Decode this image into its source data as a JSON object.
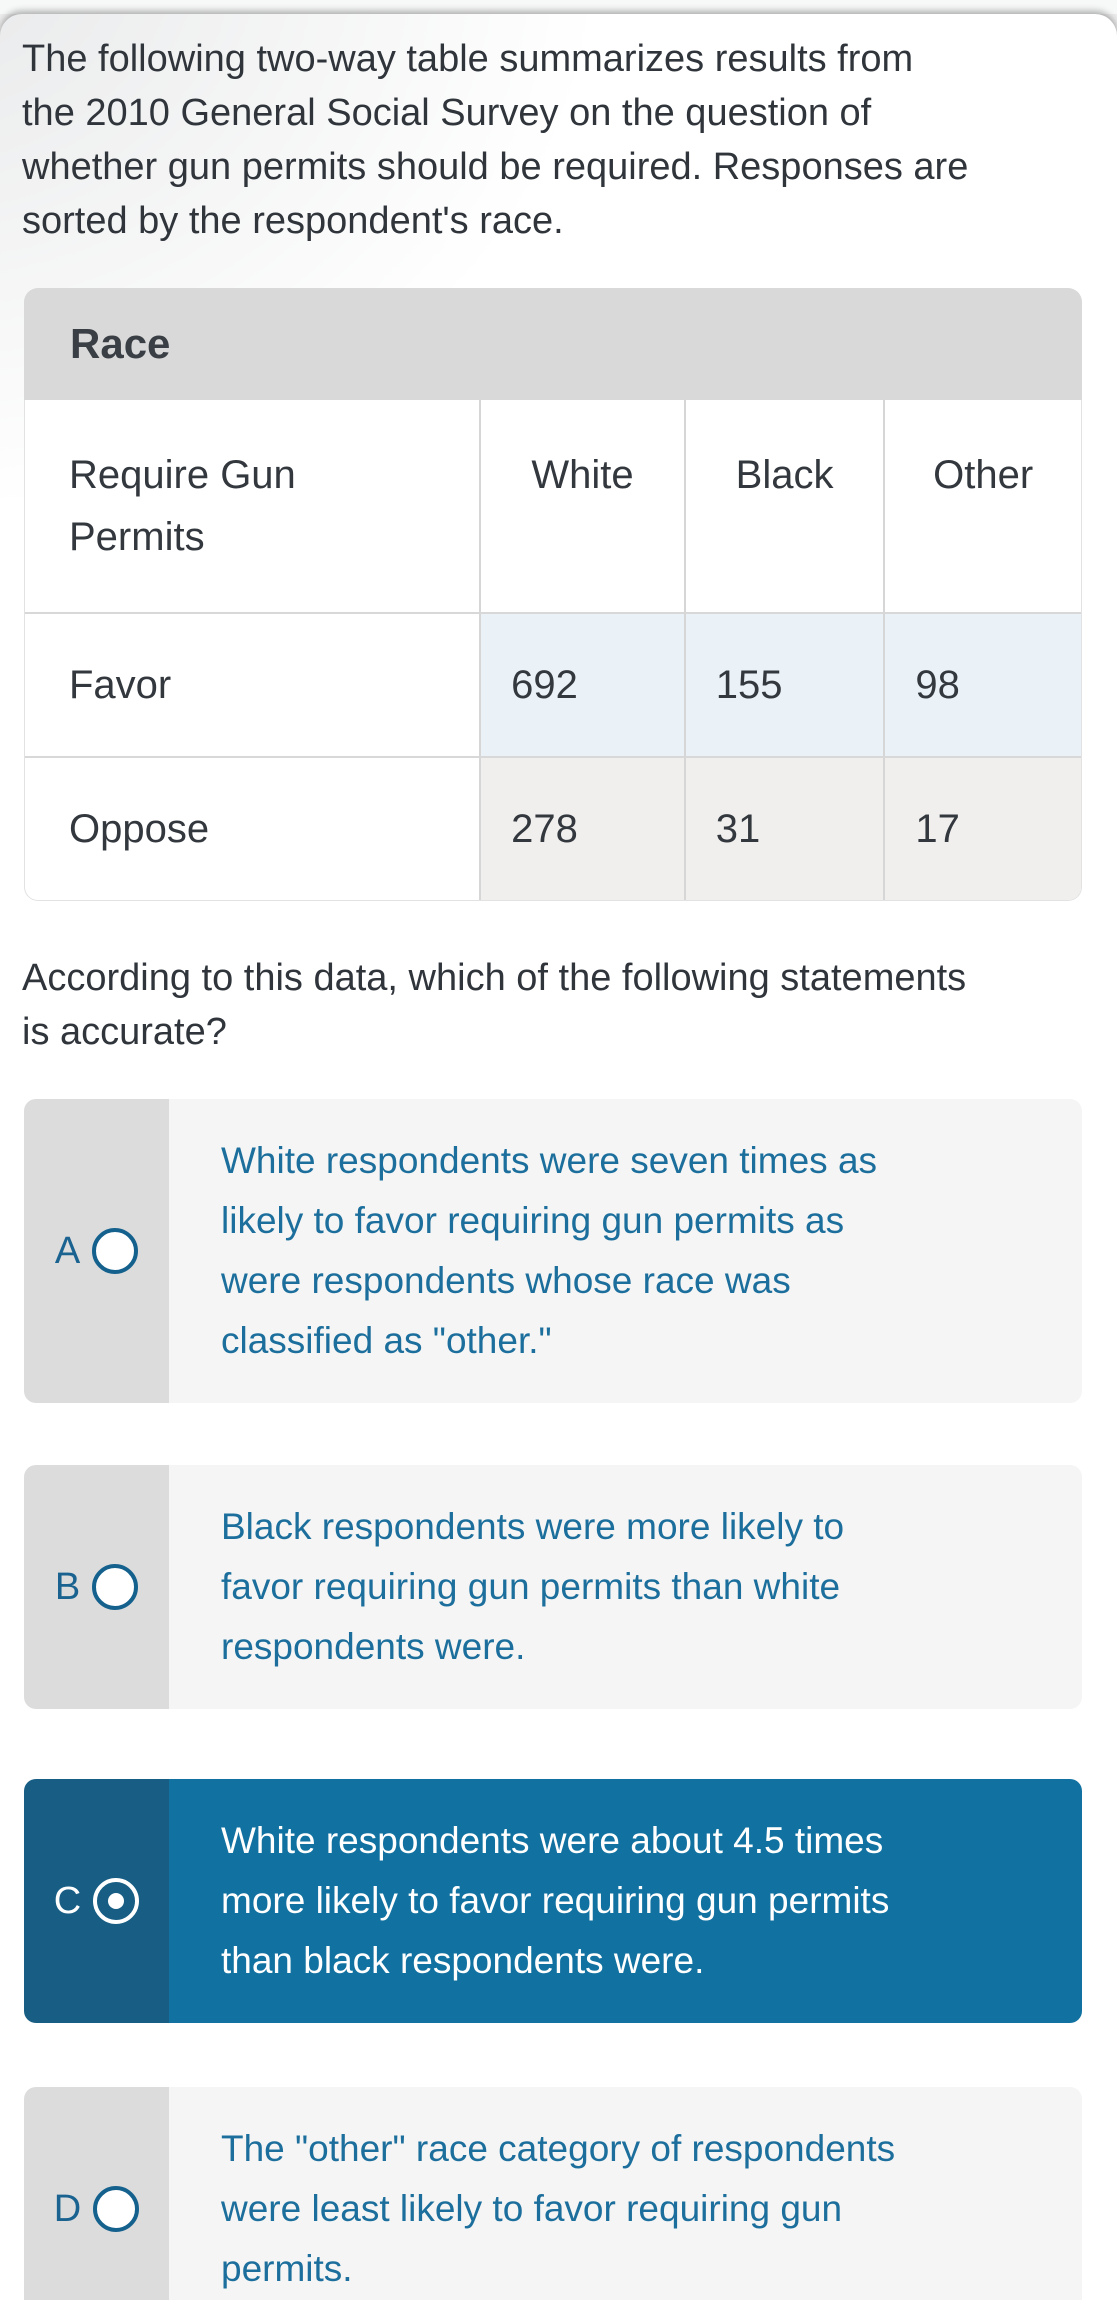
{
  "page": {
    "intro": "The following two-way table summarizes results from\nthe 2010 General Social Survey on the question of\nwhether gun permits should be required. Responses are\nsorted by the respondent's race.",
    "question": "According to this data, which of the following statements\nis accurate?"
  },
  "table": {
    "race_label": "Race",
    "row_header_label": "Require Gun\nPermits",
    "column_headers": [
      "White",
      "Black",
      "Other"
    ],
    "rows": [
      {
        "label": "Favor",
        "values": [
          "692",
          "155",
          "98"
        ]
      },
      {
        "label": "Oppose",
        "values": [
          "278",
          "31",
          "17"
        ]
      }
    ]
  },
  "options": [
    {
      "letter": "A",
      "selected": false,
      "text": "White respondents were seven times as\nlikely to favor requiring gun permits as\nwere respondents whose race was\nclassified as \"other.\""
    },
    {
      "letter": "B",
      "selected": false,
      "text": "Black respondents were more likely to\nfavor requiring gun permits than white\nrespondents were."
    },
    {
      "letter": "C",
      "selected": true,
      "text": "White respondents were about 4.5 times\nmore likely to favor requiring gun permits\nthan black respondents were."
    },
    {
      "letter": "D",
      "selected": false,
      "text": "The \"other\" race category of respondents\nwere least likely to favor requiring gun\npermits."
    }
  ],
  "colors": {
    "selected_option_bg": "#1171a0",
    "selected_option_strip": "#175d84",
    "option_strip_bg": "#dcdcdc",
    "option_bg": "#f5f5f5",
    "option_text_blue": "#1c6f9c",
    "favor_row_bg": "#eaf2f8",
    "oppose_row_bg": "#f0efee",
    "race_band_bg": "#d9d9d9"
  }
}
